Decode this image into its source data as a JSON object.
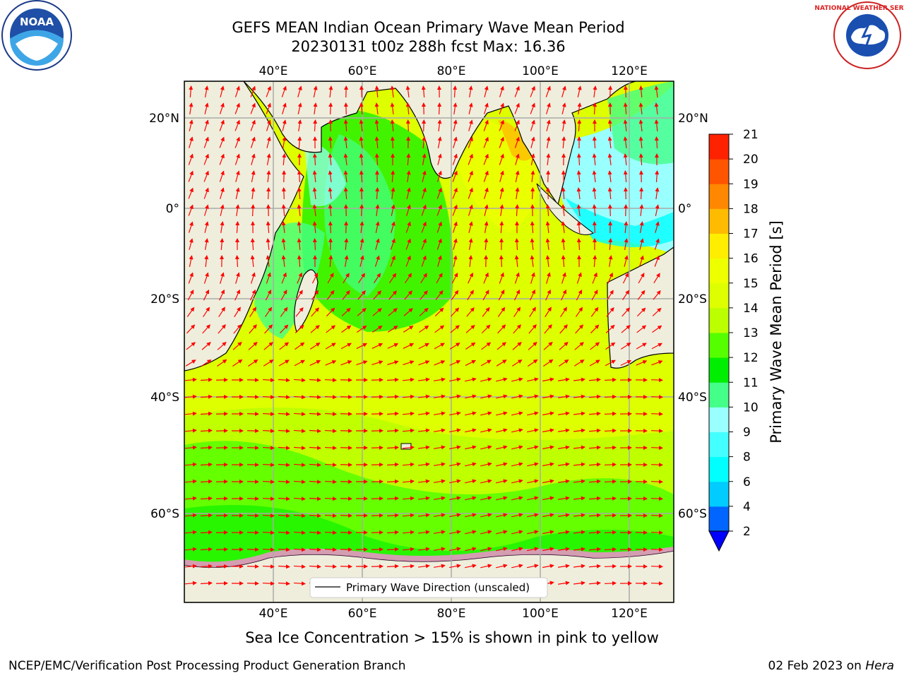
{
  "title": {
    "line1": "GEFS MEAN Indian Ocean Primary Wave Mean Period",
    "line2": "20230131 t00z 288h fcst   Max: 16.36"
  },
  "map": {
    "region": "Indian Ocean",
    "lon_range": [
      20,
      130
    ],
    "lat_range": [
      -73,
      27
    ],
    "lon_ticks": [
      "40°E",
      "60°E",
      "80°E",
      "100°E",
      "120°E"
    ],
    "lat_ticks": [
      "20°N",
      "0°",
      "20°S",
      "40°S",
      "60°S"
    ],
    "legend_label": "Primary Wave Direction (unscaled)",
    "land_color": "#efeedc",
    "arrow_color": "#ff0000"
  },
  "colorbar": {
    "label": "Primary Wave Mean Period [s]",
    "ticks": [
      "2",
      "4",
      "6",
      "8",
      "9",
      "10",
      "11",
      "12",
      "13",
      "14",
      "15",
      "16",
      "17",
      "18",
      "19",
      "20",
      "21"
    ],
    "colors": [
      "#0066ff",
      "#00ccff",
      "#00ffff",
      "#44ffff",
      "#99ffff",
      "#44ff88",
      "#00ee00",
      "#55ff00",
      "#bbff00",
      "#ddff00",
      "#eeff00",
      "#ffee00",
      "#ffbb00",
      "#ff8800",
      "#ff5500",
      "#ff2200",
      "#ff0000"
    ],
    "under_color": "#0000ff"
  },
  "logos": {
    "left": "NOAA",
    "right": "NATIONAL WEATHER SERVICE"
  },
  "footer": {
    "ice_note": "Sea Ice Concentration > 15% is shown in pink to yellow",
    "left": "NCEP/EMC/Verification Post Processing Product Generation Branch",
    "right_date": "02 Feb 2023 on",
    "right_machine": "Hera"
  }
}
